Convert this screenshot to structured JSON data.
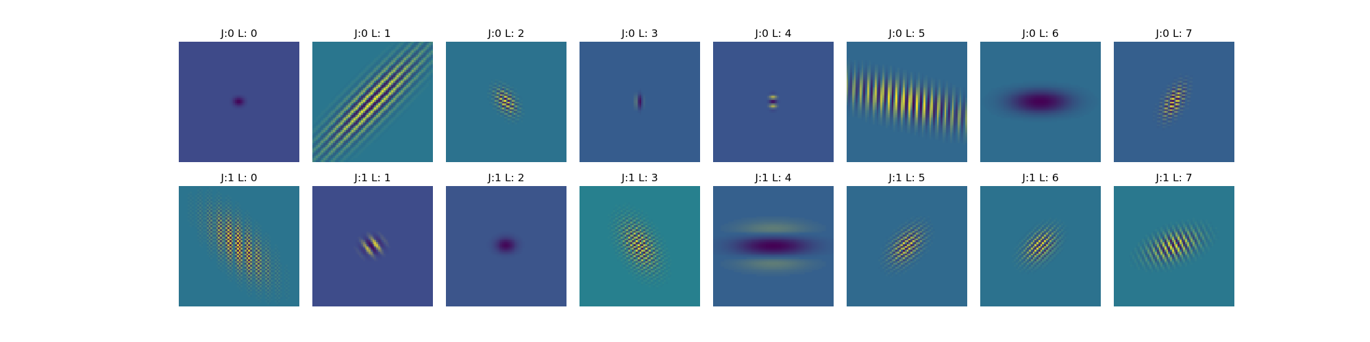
{
  "figure": {
    "rows": [
      {
        "panels": [
          {
            "title": "J:0 L: 0",
            "bg": "#3e4a89",
            "kernel": {
              "angle": 0,
              "sx": 2.2,
              "sy": 1.5,
              "freq": 0.16,
              "amp": 1.0,
              "phase": 0
            }
          },
          {
            "title": "J:0 L: 1",
            "bg": "#2a768e",
            "kernel": {
              "angle": 45,
              "sx": 6.0,
              "sy": 23.0,
              "freq": 0.19,
              "amp": 1.0,
              "phase": 0
            }
          },
          {
            "title": "J:0 L: 2",
            "bg": "#2c728e",
            "kernel": {
              "angle": -35,
              "sx": 3.0,
              "sy": 5.0,
              "freq": 0.16,
              "amp": 1.0,
              "phase": 0.5
            }
          },
          {
            "title": "J:0 L: 3",
            "bg": "#365c8d",
            "kernel": {
              "angle": 0,
              "sx": 1.2,
              "sy": 2.5,
              "freq": 0.14,
              "amp": 1.0,
              "phase": 0.4
            }
          },
          {
            "title": "J:0 L: 4",
            "bg": "#3a548c",
            "kernel": {
              "angle": 90,
              "sx": 2.5,
              "sy": 1.3,
              "freq": 0.2,
              "amp": 1.0,
              "phase": 0
            }
          },
          {
            "title": "J:0 L: 5",
            "bg": "#31688e",
            "kernel": {
              "angle": -75,
              "sx": 6.0,
              "sy": 26.0,
              "freq": 0.17,
              "amp": 1.0,
              "phase": 0
            }
          },
          {
            "title": "J:0 L: 6",
            "bg": "#2f6c8e",
            "kernel": {
              "angle": 90,
              "sx": 5.0,
              "sy": 11.0,
              "freq": 0.17,
              "amp": 1.0,
              "phase": 0
            }
          },
          {
            "title": "J:0 L: 7",
            "bg": "#355f8d",
            "kernel": {
              "angle": 30,
              "sx": 3.0,
              "sy": 6.0,
              "freq": 0.16,
              "amp": 1.0,
              "phase": 0.6
            }
          }
        ]
      },
      {
        "panels": [
          {
            "title": "J:1 L: 0",
            "bg": "#2b748e",
            "kernel": {
              "angle": -40,
              "sx": 6.0,
              "sy": 14.0,
              "freq": 0.13,
              "amp": 1.0,
              "phase": 0
            }
          },
          {
            "title": "J:1 L: 1",
            "bg": "#3e4c8a",
            "kernel": {
              "angle": 80,
              "sx": 3.0,
              "sy": 3.5,
              "freq": 0.15,
              "amp": 1.0,
              "phase": 0.6
            }
          },
          {
            "title": "J:1 L: 2",
            "bg": "#3c558b",
            "kernel": {
              "angle": 90,
              "sx": 2.8,
              "sy": 3.5,
              "freq": 0.17,
              "amp": 1.0,
              "phase": 0.4
            }
          },
          {
            "title": "J:1 L: 3",
            "bg": "#27808e",
            "kernel": {
              "angle": -30,
              "sx": 5.0,
              "sy": 9.0,
              "freq": 0.14,
              "amp": 1.0,
              "phase": 0.5
            }
          },
          {
            "title": "J:1 L: 4",
            "bg": "#35608d",
            "kernel": {
              "angle": 90,
              "sx": 6.0,
              "sy": 13.0,
              "freq": 0.16,
              "amp": 1.0,
              "phase": 0
            }
          },
          {
            "title": "J:1 L: 5",
            "bg": "#306a8e",
            "kernel": {
              "angle": 40,
              "sx": 4.0,
              "sy": 7.0,
              "freq": 0.16,
              "amp": 1.0,
              "phase": 0.3
            }
          },
          {
            "title": "J:1 L: 6",
            "bg": "#2c728e",
            "kernel": {
              "angle": 45,
              "sx": 4.0,
              "sy": 6.5,
              "freq": 0.16,
              "amp": 1.0,
              "phase": 0.3
            }
          },
          {
            "title": "J:1 L: 7",
            "bg": "#2a788e",
            "kernel": {
              "angle": 70,
              "sx": 4.5,
              "sy": 9.0,
              "freq": 0.15,
              "amp": 1.0,
              "phase": 0.4
            }
          }
        ]
      }
    ]
  }
}
